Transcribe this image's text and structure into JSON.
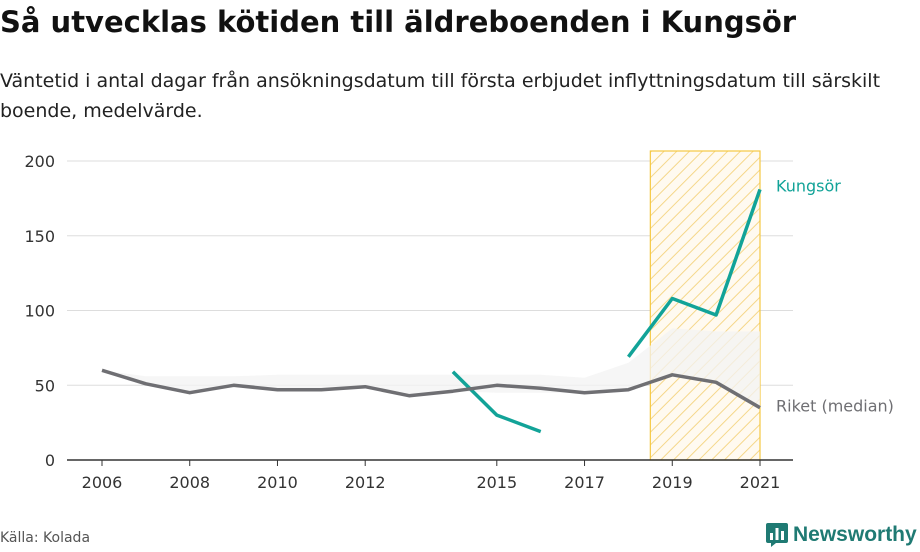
{
  "title": "Så utvecklas kötiden till äldreboenden i Kungsör",
  "subtitle": "Väntetid i antal dagar från ansökningsdatum till första erbjudet inflyttningsdatum till särskilt boende, medelvärde.",
  "source": "Källa: Kolada",
  "brand": "Newsworthy",
  "colors": {
    "kungsor": "#12a398",
    "riket": "#6f6f73",
    "band_fill": "#f3f3f3",
    "highlight": "#f5c842"
  },
  "chart_data": {
    "type": "line",
    "title": "Så utvecklas kötiden till äldreboenden i Kungsör",
    "xlabel": "",
    "ylabel": "",
    "x": [
      2006,
      2007,
      2008,
      2009,
      2010,
      2011,
      2012,
      2013,
      2014,
      2015,
      2016,
      2017,
      2018,
      2019,
      2020,
      2021
    ],
    "x_ticks": [
      2006,
      2008,
      2010,
      2012,
      2015,
      2017,
      2019,
      2021
    ],
    "y_ticks": [
      0,
      50,
      100,
      150,
      200
    ],
    "ylim": [
      0,
      200
    ],
    "xlim": [
      2006,
      2021
    ],
    "highlight_range": [
      2018.5,
      2021
    ],
    "series": [
      {
        "name": "Kungsör",
        "label": "Kungsör",
        "values": [
          null,
          null,
          null,
          null,
          null,
          null,
          null,
          null,
          59,
          30,
          19,
          null,
          69,
          108,
          97,
          181
        ]
      },
      {
        "name": "Riket (median)",
        "label": "Riket (median)",
        "values": [
          60,
          51,
          45,
          50,
          47,
          47,
          49,
          43,
          46,
          50,
          48,
          45,
          47,
          57,
          52,
          35
        ]
      }
    ],
    "band": {
      "lower": [
        60,
        51,
        45,
        50,
        47,
        47,
        49,
        43,
        46,
        45,
        45,
        45,
        47,
        57,
        52,
        35
      ],
      "upper": [
        60,
        56,
        56,
        56,
        57,
        57,
        57,
        57,
        57,
        57,
        57,
        55,
        65,
        88,
        86,
        86
      ]
    },
    "grid": true,
    "legend": "inline labels at line ends (right)"
  }
}
